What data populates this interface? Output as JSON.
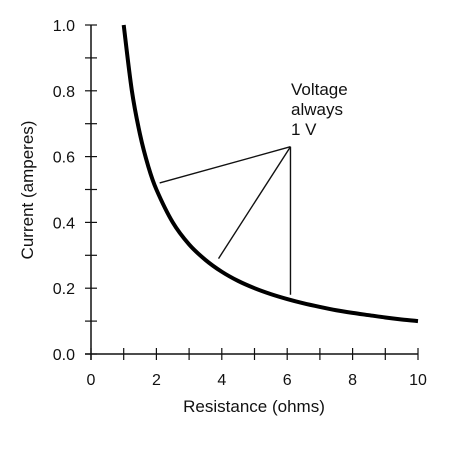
{
  "chart_data": {
    "type": "line",
    "title": "",
    "xlabel": "Resistance (ohms)",
    "ylabel": "Current (amperes)",
    "xlim": [
      0,
      10
    ],
    "ylim": [
      0,
      1.0
    ],
    "x_ticks": [
      0,
      2,
      4,
      6,
      8,
      10
    ],
    "x_tick_labels": [
      "0",
      "2",
      "4",
      "6",
      "8",
      "10"
    ],
    "y_ticks": [
      0,
      0.2,
      0.4,
      0.6,
      0.8,
      1.0
    ],
    "y_tick_labels": [
      "0.0",
      "0.2",
      "0.4",
      "0.6",
      "0.8",
      "1.0"
    ],
    "x_minor_step": 1,
    "y_minor_step": 0.1,
    "grid": false,
    "series": [
      {
        "x": [
          1.0,
          1.25,
          1.5,
          1.75,
          2.0,
          2.5,
          3.0,
          3.5,
          4.0,
          4.5,
          5.0,
          5.5,
          6.0,
          6.5,
          7.0,
          7.5,
          8.0,
          8.5,
          9.0,
          9.5,
          10.0
        ],
        "y": [
          1.0,
          0.8,
          0.667,
          0.571,
          0.5,
          0.4,
          0.333,
          0.286,
          0.25,
          0.222,
          0.2,
          0.182,
          0.167,
          0.154,
          0.143,
          0.133,
          0.125,
          0.118,
          0.111,
          0.105,
          0.1
        ],
        "color": "#000000"
      }
    ],
    "annotation": {
      "lines": [
        "Voltage",
        "always",
        "1 V"
      ],
      "anchor": [
        6.1,
        0.63
      ],
      "pointers": [
        [
          2.1,
          0.52
        ],
        [
          3.9,
          0.29
        ],
        [
          6.1,
          0.18
        ]
      ]
    }
  }
}
